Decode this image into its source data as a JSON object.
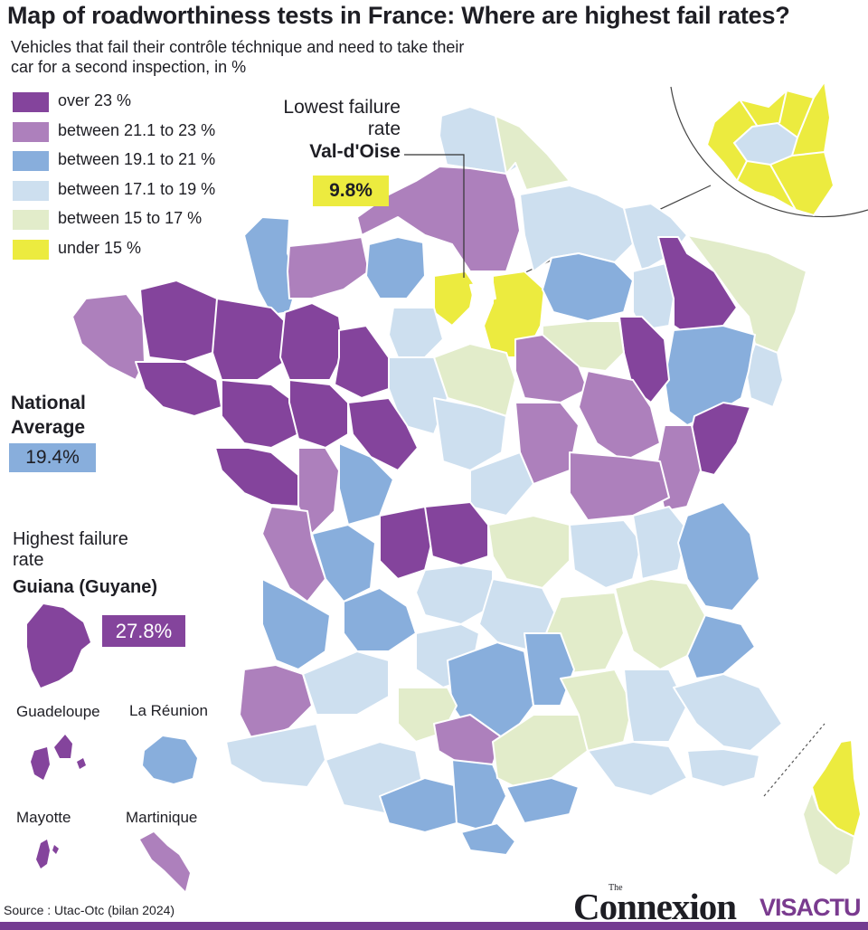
{
  "title": "Map of roadworthiness tests in France: Where are highest fail rates?",
  "subtitle": "Vehicles that fail their contrôle téchnique and need to take their car for a second inspection, in %",
  "colors": {
    "over_23": "#84449c",
    "21_23": "#ad80bc",
    "19_21": "#88aedc",
    "17_19": "#cddfef",
    "15_17": "#e2ecca",
    "under_15": "#eceb3f",
    "accent": "#743c91"
  },
  "legend": [
    {
      "label": "over 23 %",
      "color": "#84449c"
    },
    {
      "label": "between 21.1 to 23 %",
      "color": "#ad80bc"
    },
    {
      "label": "between 19.1 to 21 %",
      "color": "#88aedc"
    },
    {
      "label": "between 17.1 to 19 %",
      "color": "#cddfef"
    },
    {
      "label": "between 15 to 17 %",
      "color": "#e2ecca"
    },
    {
      "label": "under 15 %",
      "color": "#eceb3f"
    }
  ],
  "national_average": {
    "label": "National Average",
    "value": "19.4%"
  },
  "highest": {
    "label": "Highest failure rate",
    "name": "Guiana (Guyane)",
    "value": "27.8%"
  },
  "lowest": {
    "label": "Lowest failure rate",
    "name": "Val-d'Oise",
    "value": "9.8%"
  },
  "overseas": [
    {
      "name": "Guadeloupe",
      "category": "over_23"
    },
    {
      "name": "La Réunion",
      "category": "19_21"
    },
    {
      "name": "Mayotte",
      "category": "over_23"
    },
    {
      "name": "Martinique",
      "category": "21_23"
    }
  ],
  "source": "Source : Utac-Otc (bilan 2024)",
  "brand": {
    "the": "The",
    "main": "Connexion",
    "sub": "VISACTU"
  }
}
